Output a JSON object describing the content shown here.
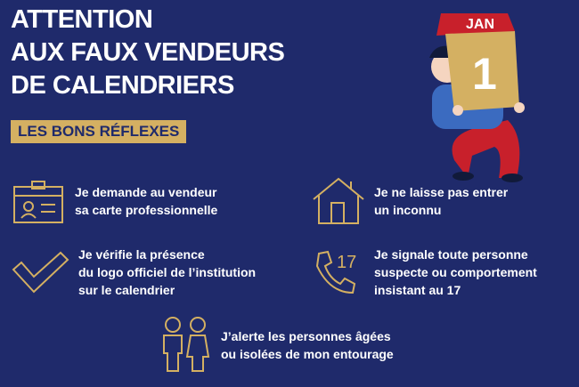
{
  "title": "ATTENTION\nAUX FAUX VENDEURS\nDE CALENDRIERS",
  "title_lines": [
    "ATTENTION",
    "AUX FAUX VENDEURS",
    "DE CALENDRIERS"
  ],
  "subtitle": "LES BONS RÉFLEXES",
  "calendar": {
    "month": "JAN",
    "day": "1"
  },
  "colors": {
    "background": "#1f2a6b",
    "accent": "#d4b062",
    "calendar_red": "#c8202b"
  },
  "items": [
    {
      "icon": "id-card-icon",
      "text": "Je demande au vendeur\nsa carte professionnelle"
    },
    {
      "icon": "house-icon",
      "text": "Je ne laisse pas entrer\nun inconnu"
    },
    {
      "icon": "checkmark-icon",
      "text": "Je vérifie la présence\ndu logo officiel de l’institution\nsur le calendrier"
    },
    {
      "icon": "phone-17-icon",
      "text": "Je signale toute personne\nsuspecte ou comportement\ninsistant au 17"
    },
    {
      "icon": "people-icon",
      "text": "J’alerte les personnes âgées\nou isolées de mon entourage"
    }
  ],
  "phone_number": "17"
}
